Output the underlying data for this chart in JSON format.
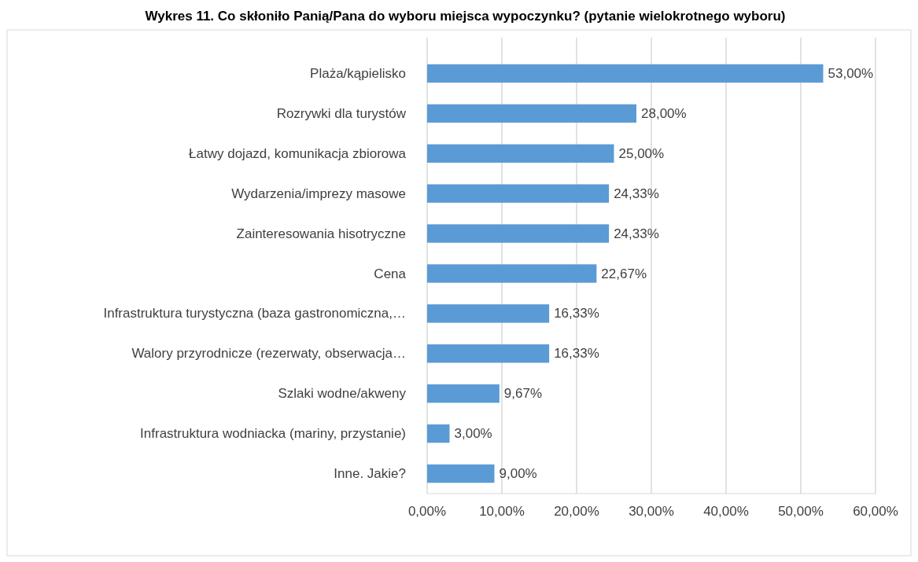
{
  "chart_data": {
    "type": "bar",
    "orientation": "horizontal",
    "title": "Wykres 11. Co skłoniło Panią/Pana do wyboru miejsca wypoczynku? (pytanie wielokrotnego wyboru)",
    "categories": [
      "Plaża/kąpielisko",
      "Rozrywki dla turystów",
      "Łatwy dojazd, komunikacja zbiorowa",
      "Wydarzenia/imprezy masowe",
      "Zainteresowania hisotryczne",
      "Cena",
      "Infrastruktura turystyczna (baza gastronomiczna,…",
      "Walory przyrodnicze (rezerwaty, obserwacja…",
      "Szlaki wodne/akweny",
      "Infrastruktura wodniacka (mariny, przystanie)",
      "Inne. Jakie?"
    ],
    "values": [
      53,
      28,
      25,
      24.33,
      24.33,
      22.67,
      16.33,
      16.33,
      9.67,
      3,
      9
    ],
    "value_labels": [
      "53,00%",
      "28,00%",
      "25,00%",
      "24,33%",
      "24,33%",
      "22,67%",
      "16,33%",
      "16,33%",
      "9,67%",
      "3,00%",
      "9,00%"
    ],
    "color": "#5b9bd5",
    "xlim": [
      0,
      60
    ],
    "xticks": [
      {
        "value": 0,
        "label": "0,00%"
      },
      {
        "value": 10,
        "label": "10,00%"
      },
      {
        "value": 20,
        "label": "20,00%"
      },
      {
        "value": 30,
        "label": "30,00%"
      },
      {
        "value": 40,
        "label": "40,00%"
      },
      {
        "value": 50,
        "label": "50,00%"
      },
      {
        "value": 60,
        "label": "60,00%"
      }
    ],
    "grid": "x"
  }
}
